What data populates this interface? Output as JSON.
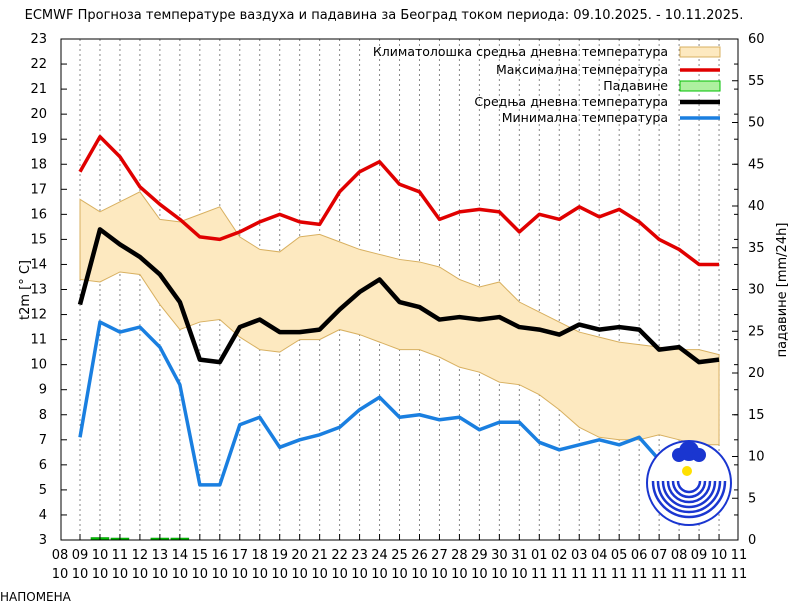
{
  "note": "НАПОМЕНА",
  "colors": {
    "band_fill": "#fde9c0",
    "band_stroke": "#d8b060",
    "max": "#e00000",
    "mean": "#000000",
    "min": "#1a7fe0",
    "precip": "#00c000",
    "logo_blue": "#1a36d0"
  },
  "chart_data": {
    "type": "line",
    "title": "ECMWF Прогноза температуре ваздуха и падавина за Београд током периода: 09.10.2025. - 10.11.2025.",
    "ylabel": "t2m [° C]",
    "y2label": "падавине [mm/24h]",
    "ylim": [
      3,
      23
    ],
    "y2lim": [
      0,
      60
    ],
    "yticks": [
      "3",
      "4",
      "5",
      "6",
      "7",
      "8",
      "9",
      "10",
      "11",
      "12",
      "13",
      "14",
      "15",
      "16",
      "17",
      "18",
      "19",
      "20",
      "21",
      "22",
      "23"
    ],
    "y2ticks": [
      "0",
      "5",
      "10",
      "15",
      "20",
      "25",
      "30",
      "35",
      "40",
      "45",
      "50",
      "55",
      "60"
    ],
    "x_days": [
      "08",
      "09",
      "10",
      "11",
      "12",
      "13",
      "14",
      "15",
      "16",
      "17",
      "18",
      "19",
      "20",
      "21",
      "22",
      "23",
      "24",
      "25",
      "26",
      "27",
      "28",
      "29",
      "30",
      "31",
      "01",
      "02",
      "03",
      "04",
      "05",
      "06",
      "07",
      "08",
      "09",
      "10",
      "11"
    ],
    "x_months": [
      "10",
      "10",
      "10",
      "10",
      "10",
      "10",
      "10",
      "10",
      "10",
      "10",
      "10",
      "10",
      "10",
      "10",
      "10",
      "10",
      "10",
      "10",
      "10",
      "10",
      "10",
      "10",
      "10",
      "10",
      "11",
      "11",
      "11",
      "11",
      "11",
      "11",
      "11",
      "11",
      "11",
      "11",
      "11"
    ],
    "x": [
      1,
      2,
      3,
      4,
      5,
      6,
      7,
      8,
      9,
      10,
      11,
      12,
      13,
      14,
      15,
      16,
      17,
      18,
      19,
      20,
      21,
      22,
      23,
      24,
      25,
      26,
      27,
      28,
      29,
      30,
      31,
      32,
      33
    ],
    "legend": [
      "Климатолошка средња дневна температура",
      "Максимална температура",
      "Падавине",
      "Средња дневна температура",
      "Минимална температура"
    ],
    "series": [
      {
        "name": "Максимална температура",
        "values": [
          17.7,
          19.1,
          18.3,
          17.1,
          16.4,
          15.8,
          15.1,
          15.0,
          15.3,
          15.7,
          16.0,
          15.7,
          15.6,
          16.9,
          17.7,
          18.1,
          17.2,
          16.9,
          15.8,
          16.1,
          16.2,
          16.1,
          15.3,
          16.0,
          15.8,
          16.3,
          15.9,
          16.2,
          15.7,
          15.0,
          14.6,
          14.0,
          14.0
        ]
      },
      {
        "name": "Средња дневна температура",
        "values": [
          12.4,
          15.4,
          14.8,
          14.3,
          13.6,
          12.5,
          10.2,
          10.1,
          11.5,
          11.8,
          11.3,
          11.3,
          11.4,
          12.2,
          12.9,
          13.4,
          12.5,
          12.3,
          11.8,
          11.9,
          11.8,
          11.9,
          11.5,
          11.4,
          11.2,
          11.6,
          11.4,
          11.5,
          11.4,
          10.6,
          10.7,
          10.1,
          10.2
        ]
      },
      {
        "name": "Минимална температура",
        "values": [
          7.1,
          11.7,
          11.3,
          11.5,
          10.7,
          9.2,
          5.2,
          5.2,
          7.6,
          7.9,
          6.7,
          7.0,
          7.2,
          7.5,
          8.2,
          8.7,
          7.9,
          8.0,
          7.8,
          7.9,
          7.4,
          7.7,
          7.7,
          6.9,
          6.6,
          6.8,
          7.0,
          6.8,
          7.1,
          6.2,
          6.0,
          5.9,
          6.0
        ]
      },
      {
        "name": "Климатолошка средња дневна температура",
        "upper": [
          16.6,
          16.1,
          16.5,
          16.9,
          15.8,
          15.7,
          16.0,
          16.3,
          15.1,
          14.6,
          14.5,
          15.1,
          15.2,
          14.9,
          14.6,
          14.4,
          14.2,
          14.1,
          13.9,
          13.4,
          13.1,
          13.3,
          12.5,
          12.1,
          11.7,
          11.3,
          11.1,
          10.9,
          10.8,
          10.7,
          10.6,
          10.6,
          10.4
        ],
        "lower": [
          13.4,
          13.3,
          13.7,
          13.6,
          12.4,
          11.4,
          11.7,
          11.8,
          11.1,
          10.6,
          10.5,
          11.0,
          11.0,
          11.4,
          11.2,
          10.9,
          10.6,
          10.6,
          10.3,
          9.9,
          9.7,
          9.3,
          9.2,
          8.8,
          8.2,
          7.5,
          7.1,
          7.0,
          7.0,
          7.2,
          7.0,
          6.8,
          6.8
        ]
      },
      {
        "name": "Падавине",
        "values": [
          0.0,
          0.3,
          0.1,
          0.0,
          0.2,
          0.2,
          0.0,
          0.0,
          0.0,
          0.0,
          0.0,
          0.0,
          0.0,
          0.0,
          0.0,
          0.0,
          0.0,
          0.0,
          0.0,
          0.0,
          0.0,
          0.0,
          0.0,
          0.0,
          0.0,
          0.0,
          0.0,
          0.0,
          0.0,
          0.0,
          0.0,
          0.0,
          0.0
        ]
      }
    ],
    "grid": "vertical dotted",
    "legend_position": "top-right"
  }
}
